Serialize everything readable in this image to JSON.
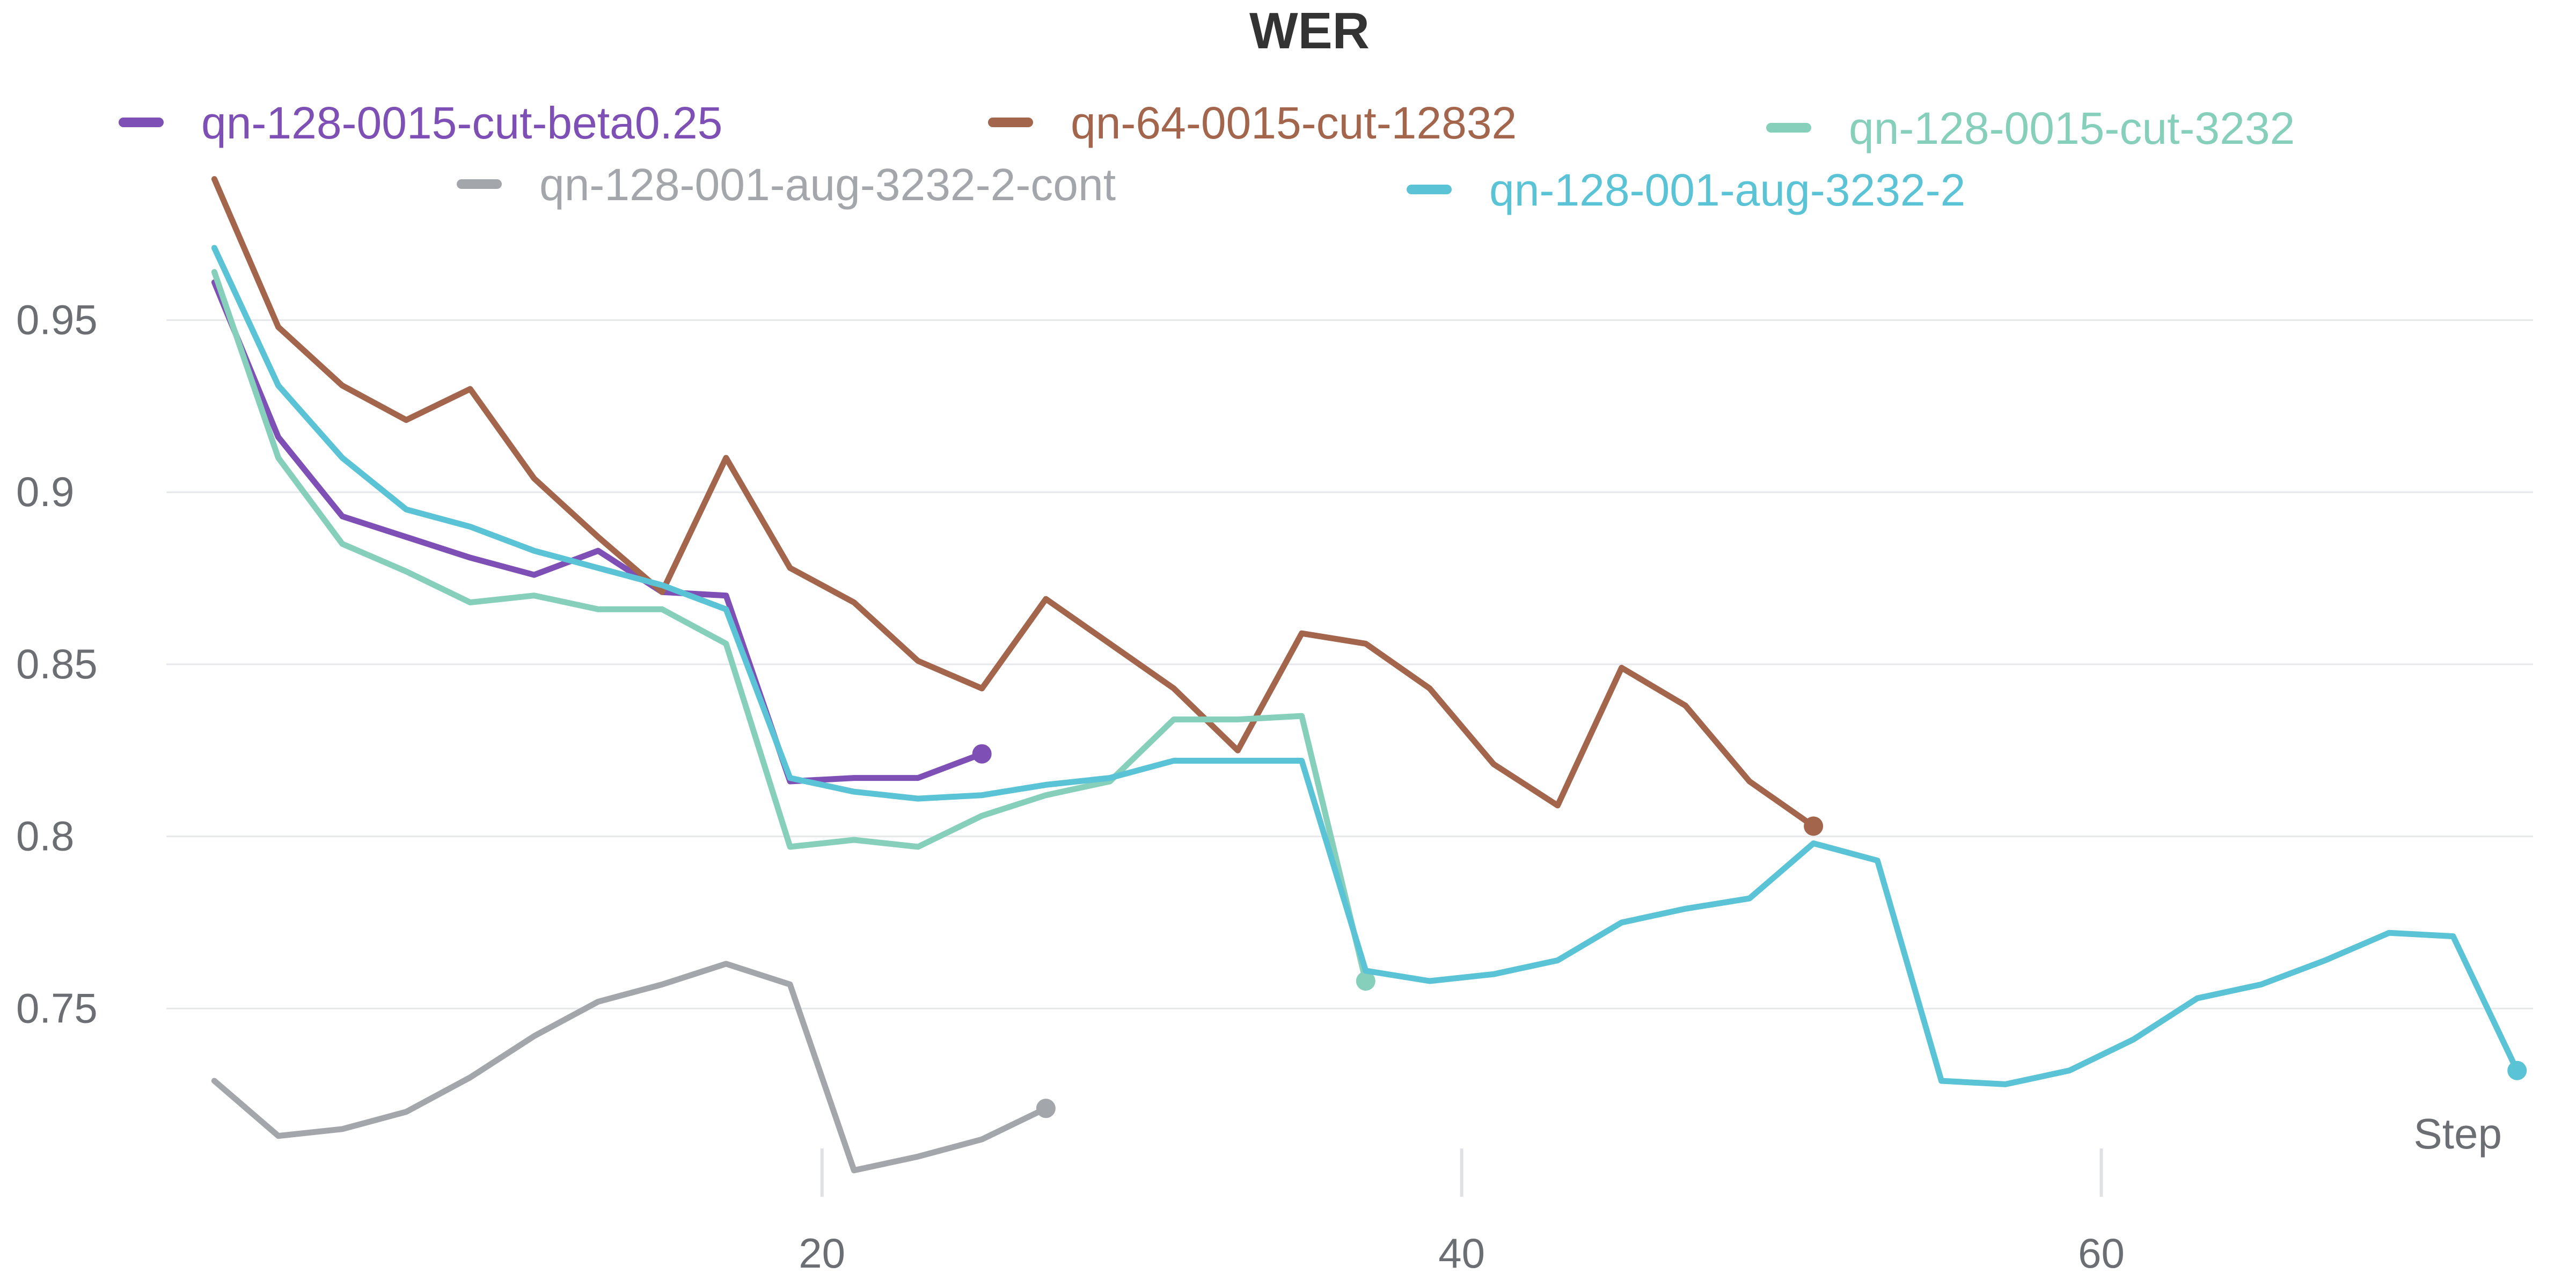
{
  "chart_data": {
    "type": "line",
    "title": "WER",
    "xlabel": "Step",
    "ylabel": "",
    "xlim": [
      -0.5,
      73.5
    ],
    "ylim": [
      0.7,
      0.99
    ],
    "x_ticks": [
      20,
      40,
      60
    ],
    "y_ticks": [
      0.75,
      0.8,
      0.85,
      0.9,
      0.95
    ],
    "grid": true,
    "legend_position": "top",
    "series": [
      {
        "name": "qn-128-0015-cut-beta0.25",
        "color": "#7e4fb5",
        "x": [
          1,
          3,
          5,
          7,
          9,
          11,
          13,
          15,
          17,
          19,
          21,
          23,
          25
        ],
        "y": [
          0.961,
          0.916,
          0.893,
          0.887,
          0.881,
          0.876,
          0.883,
          0.871,
          0.87,
          0.816,
          0.817,
          0.817,
          0.824
        ]
      },
      {
        "name": "qn-64-0015-cut-12832",
        "color": "#a3654b",
        "x": [
          1,
          3,
          5,
          7,
          9,
          11,
          13,
          15,
          17,
          19,
          21,
          23,
          25,
          27,
          29,
          31,
          33,
          35,
          37,
          39,
          41,
          43,
          45,
          47,
          49,
          51
        ],
        "y": [
          0.991,
          0.948,
          0.931,
          0.921,
          0.93,
          0.904,
          0.887,
          0.871,
          0.91,
          0.878,
          0.868,
          0.851,
          0.843,
          0.869,
          0.856,
          0.843,
          0.825,
          0.859,
          0.856,
          0.843,
          0.821,
          0.809,
          0.849,
          0.838,
          0.816,
          0.803
        ]
      },
      {
        "name": "qn-128-0015-cut-3232",
        "color": "#85cfbb",
        "x": [
          1,
          3,
          5,
          7,
          9,
          11,
          13,
          15,
          17,
          19,
          21,
          23,
          25,
          27,
          29,
          31,
          33,
          35,
          37
        ],
        "y": [
          0.964,
          0.91,
          0.885,
          0.877,
          0.868,
          0.87,
          0.866,
          0.866,
          0.856,
          0.797,
          0.799,
          0.797,
          0.806,
          0.812,
          0.816,
          0.834,
          0.834,
          0.835,
          0.758
        ]
      },
      {
        "name": "qn-128-001-aug-3232-2-cont",
        "color": "#a3a6aa",
        "x": [
          1,
          3,
          5,
          7,
          9,
          11,
          13,
          15,
          17,
          19,
          21,
          23,
          25,
          27
        ],
        "y": [
          0.729,
          0.713,
          0.715,
          0.72,
          0.73,
          0.742,
          0.752,
          0.757,
          0.763,
          0.757,
          0.703,
          0.707,
          0.712,
          0.721
        ]
      },
      {
        "name": "qn-128-001-aug-3232-2",
        "color": "#5bc3d6",
        "x": [
          1,
          3,
          5,
          7,
          9,
          11,
          13,
          15,
          17,
          19,
          21,
          23,
          25,
          27,
          29,
          31,
          33,
          35,
          37,
          39,
          41,
          43,
          45,
          47,
          49,
          51,
          53,
          55,
          57,
          59,
          61,
          63,
          65,
          67,
          69,
          71,
          73
        ],
        "y": [
          0.971,
          0.931,
          0.91,
          0.895,
          0.89,
          0.883,
          0.878,
          0.873,
          0.866,
          0.817,
          0.813,
          0.811,
          0.812,
          0.815,
          0.817,
          0.822,
          0.822,
          0.822,
          0.761,
          0.758,
          0.76,
          0.764,
          0.775,
          0.779,
          0.782,
          0.798,
          0.793,
          0.729,
          0.728,
          0.732,
          0.741,
          0.753,
          0.757,
          0.764,
          0.772,
          0.771,
          0.732
        ]
      }
    ]
  }
}
